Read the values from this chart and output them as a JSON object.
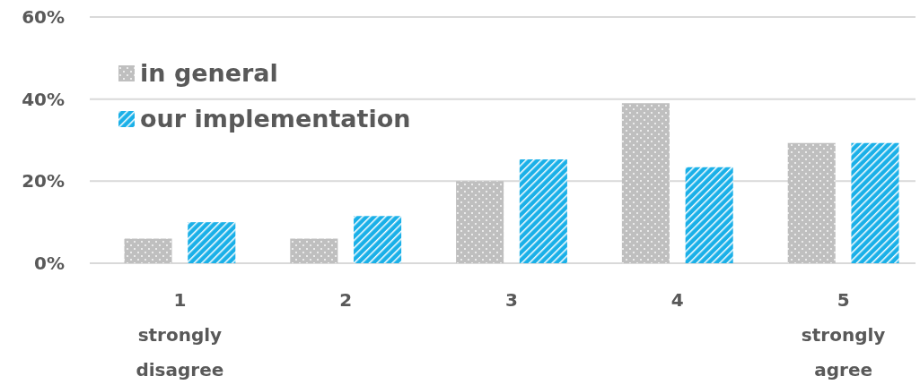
{
  "chart_data": {
    "type": "bar",
    "categories": [
      "1\nstrongly\ndisagree",
      "2",
      "3",
      "4",
      "5\nstrongly\nagree"
    ],
    "series": [
      {
        "name": "in general",
        "color": "#bfbfbf",
        "values": [
          6,
          6,
          20,
          39,
          29.3
        ]
      },
      {
        "name": "our implementation",
        "color": "#1ab0e8",
        "values": [
          10,
          11.5,
          25.3,
          23.4,
          29.3
        ]
      }
    ],
    "ylim": [
      0,
      60
    ],
    "yticks": [
      {
        "value": 0,
        "label": "0%"
      },
      {
        "value": 20,
        "label": "20%"
      },
      {
        "value": 40,
        "label": "40%"
      },
      {
        "value": 60,
        "label": "60%"
      }
    ],
    "grid": "y",
    "legend": "top left"
  }
}
